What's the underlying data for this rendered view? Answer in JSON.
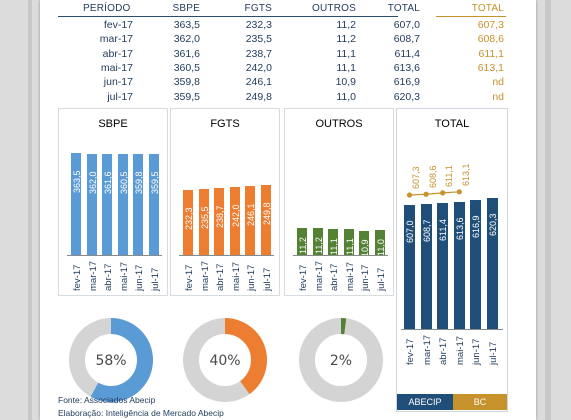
{
  "table": {
    "headers": [
      "PERÍODO",
      "SBPE",
      "FGTS",
      "OUTROS",
      "TOTAL",
      "TOTAL"
    ],
    "rows": [
      [
        "fev-17",
        "363,5",
        "232,3",
        "11,2",
        "607,0",
        "607,3"
      ],
      [
        "mar-17",
        "362,0",
        "235,5",
        "11,2",
        "608,7",
        "608,6"
      ],
      [
        "abr-17",
        "361,6",
        "238,7",
        "11,1",
        "611,4",
        "611,1"
      ],
      [
        "mai-17",
        "360,5",
        "242,0",
        "11,1",
        "613,6",
        "613,1"
      ],
      [
        "jun-17",
        "359,8",
        "246,1",
        "10,9",
        "616,9",
        "nd"
      ],
      [
        "jul-17",
        "359,5",
        "249,8",
        "11,0",
        "620,3",
        "nd"
      ]
    ]
  },
  "colors": {
    "sbpe": "#5b9bd5",
    "fgts": "#ed7d31",
    "outros": "#548235",
    "total": "#1f4e79",
    "bc": "#c6922c",
    "donut_rest": "#d4d4d4"
  },
  "chart_data": [
    {
      "type": "bar",
      "title": "SBPE",
      "categories": [
        "fev-17",
        "mar-17",
        "abr-17",
        "mai-17",
        "jun-17",
        "jul-17"
      ],
      "values": [
        363.5,
        362.0,
        361.6,
        360.5,
        359.8,
        359.5
      ],
      "value_labels": [
        "363,5",
        "362,0",
        "361,6",
        "360,5",
        "359,8",
        "359,5"
      ],
      "color": "#5b9bd5"
    },
    {
      "type": "bar",
      "title": "FGTS",
      "categories": [
        "fev-17",
        "mar-17",
        "abr-17",
        "mai-17",
        "jun-17",
        "jul-17"
      ],
      "values": [
        232.3,
        235.5,
        238.7,
        242.0,
        246.1,
        249.8
      ],
      "value_labels": [
        "232,3",
        "235,5",
        "238,7",
        "242,0",
        "246,1",
        "249,8"
      ],
      "color": "#ed7d31"
    },
    {
      "type": "bar",
      "title": "OUTROS",
      "categories": [
        "fev-17",
        "mar-17",
        "abr-17",
        "mai-17",
        "jun-17",
        "jul-17"
      ],
      "values": [
        11.2,
        11.2,
        11.1,
        11.1,
        10.9,
        11.0
      ],
      "value_labels": [
        "11,2",
        "11,2",
        "11,1",
        "11,1",
        "10,9",
        "11,0"
      ],
      "color": "#548235"
    },
    {
      "type": "bar",
      "title": "TOTAL",
      "categories": [
        "fev-17",
        "mar-17",
        "abr-17",
        "mai-17",
        "jun-17",
        "jul-17"
      ],
      "series": [
        {
          "name": "ABECIP",
          "values": [
            607.0,
            608.7,
            611.4,
            613.6,
            616.9,
            620.3
          ],
          "value_labels": [
            "607,0",
            "608,7",
            "611,4",
            "613,6",
            "616,9",
            "620,3"
          ],
          "color": "#1f4e79"
        },
        {
          "name": "BC",
          "values": [
            607.3,
            608.6,
            611.1,
            613.1,
            null,
            null
          ],
          "value_labels": [
            "607,3",
            "608,6",
            "611,1",
            "613,1"
          ],
          "color": "#c6922c"
        }
      ],
      "legend": [
        "ABECIP",
        "BC"
      ]
    },
    {
      "type": "pie",
      "values": [
        58,
        42
      ],
      "label": "58%",
      "color": "#5b9bd5"
    },
    {
      "type": "pie",
      "values": [
        40,
        60
      ],
      "label": "40%",
      "color": "#ed7d31"
    },
    {
      "type": "pie",
      "values": [
        2,
        98
      ],
      "label": "2%",
      "color": "#548235"
    }
  ],
  "footer": {
    "source": "Fonte: Associados Abecip",
    "prepared": "Elaboração: Inteligência de Mercado Abecip"
  }
}
